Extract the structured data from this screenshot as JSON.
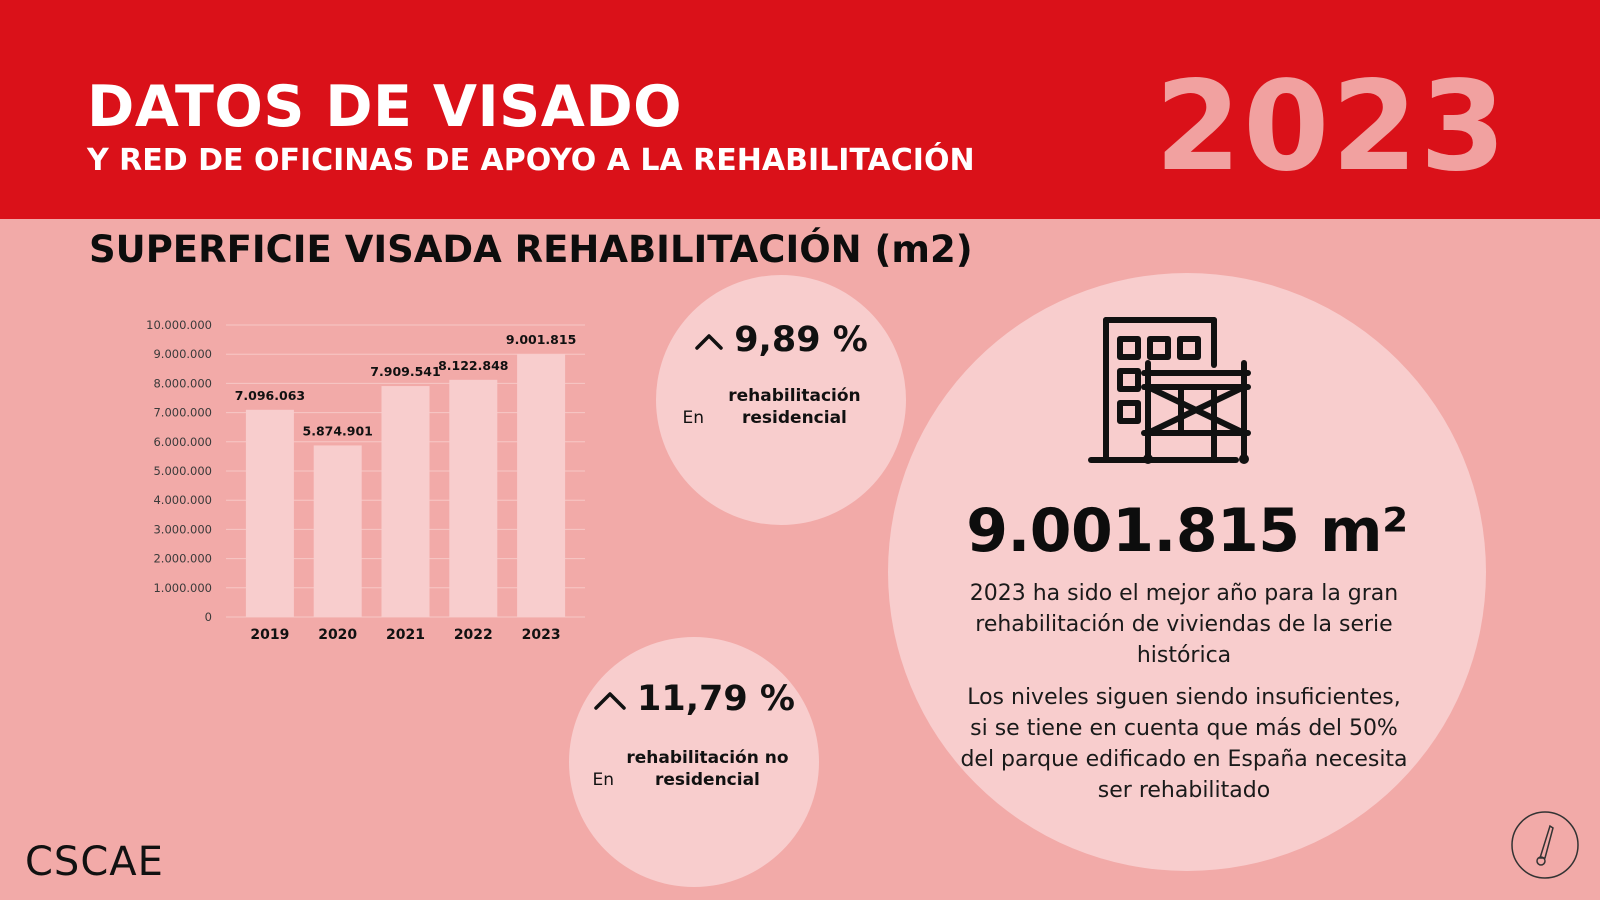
{
  "header": {
    "title": "DATOS DE VISADO",
    "subtitle": "Y RED DE OFICINAS DE APOYO A LA REHABILITACIÓN",
    "year": "2023"
  },
  "section_title": "SUPERFICIE VISADA REHABILITACIÓN (m2)",
  "chart_data": {
    "type": "bar",
    "categories": [
      "2019",
      "2020",
      "2021",
      "2022",
      "2023"
    ],
    "values": [
      7096063,
      5874901,
      7909541,
      8122848,
      9001815
    ],
    "data_labels": [
      "7.096.063",
      "5.874.901",
      "7.909.541",
      "8.122.848",
      "9.001.815"
    ],
    "yticks": [
      "0",
      "1.000.000",
      "2.000.000",
      "3.000.000",
      "4.000.000",
      "5.000.000",
      "6.000.000",
      "7.000.000",
      "8.000.000",
      "9.000.000",
      "10.000.000"
    ],
    "ylim": [
      0,
      10000000
    ],
    "title": "",
    "xlabel": "",
    "ylabel": "",
    "grid": true,
    "bar_color": "#f8cdcd",
    "grid_color": "#f7c8c6"
  },
  "stats": {
    "residential": {
      "value": "9,89 %",
      "caption_prefix": "En ",
      "caption_bold": "rehabilitación residencial",
      "icon": "chevron-up-icon"
    },
    "non_residential": {
      "value": "11,79 %",
      "caption_prefix": "En ",
      "caption_bold": "rehabilitación no residencial",
      "icon": "chevron-up-icon"
    }
  },
  "highlight": {
    "icon": "building-scaffold-icon",
    "value": "9.001.815 m²",
    "text1": "2023 ha sido el mejor año para la gran rehabilitación de viviendas de la serie histórica",
    "text2": "Los niveles siguen siendo insuficientes, si se tiene en cuenta que más del 50% del parque edificado en España necesita ser rehabilitado"
  },
  "footer": {
    "logo_text": "CSCAE",
    "corner_icon": "compass-icon"
  },
  "colors": {
    "header_red": "#da1119",
    "background": "#f2aaa8",
    "circle": "#f8cdcd",
    "year": "#f1a1a0"
  }
}
